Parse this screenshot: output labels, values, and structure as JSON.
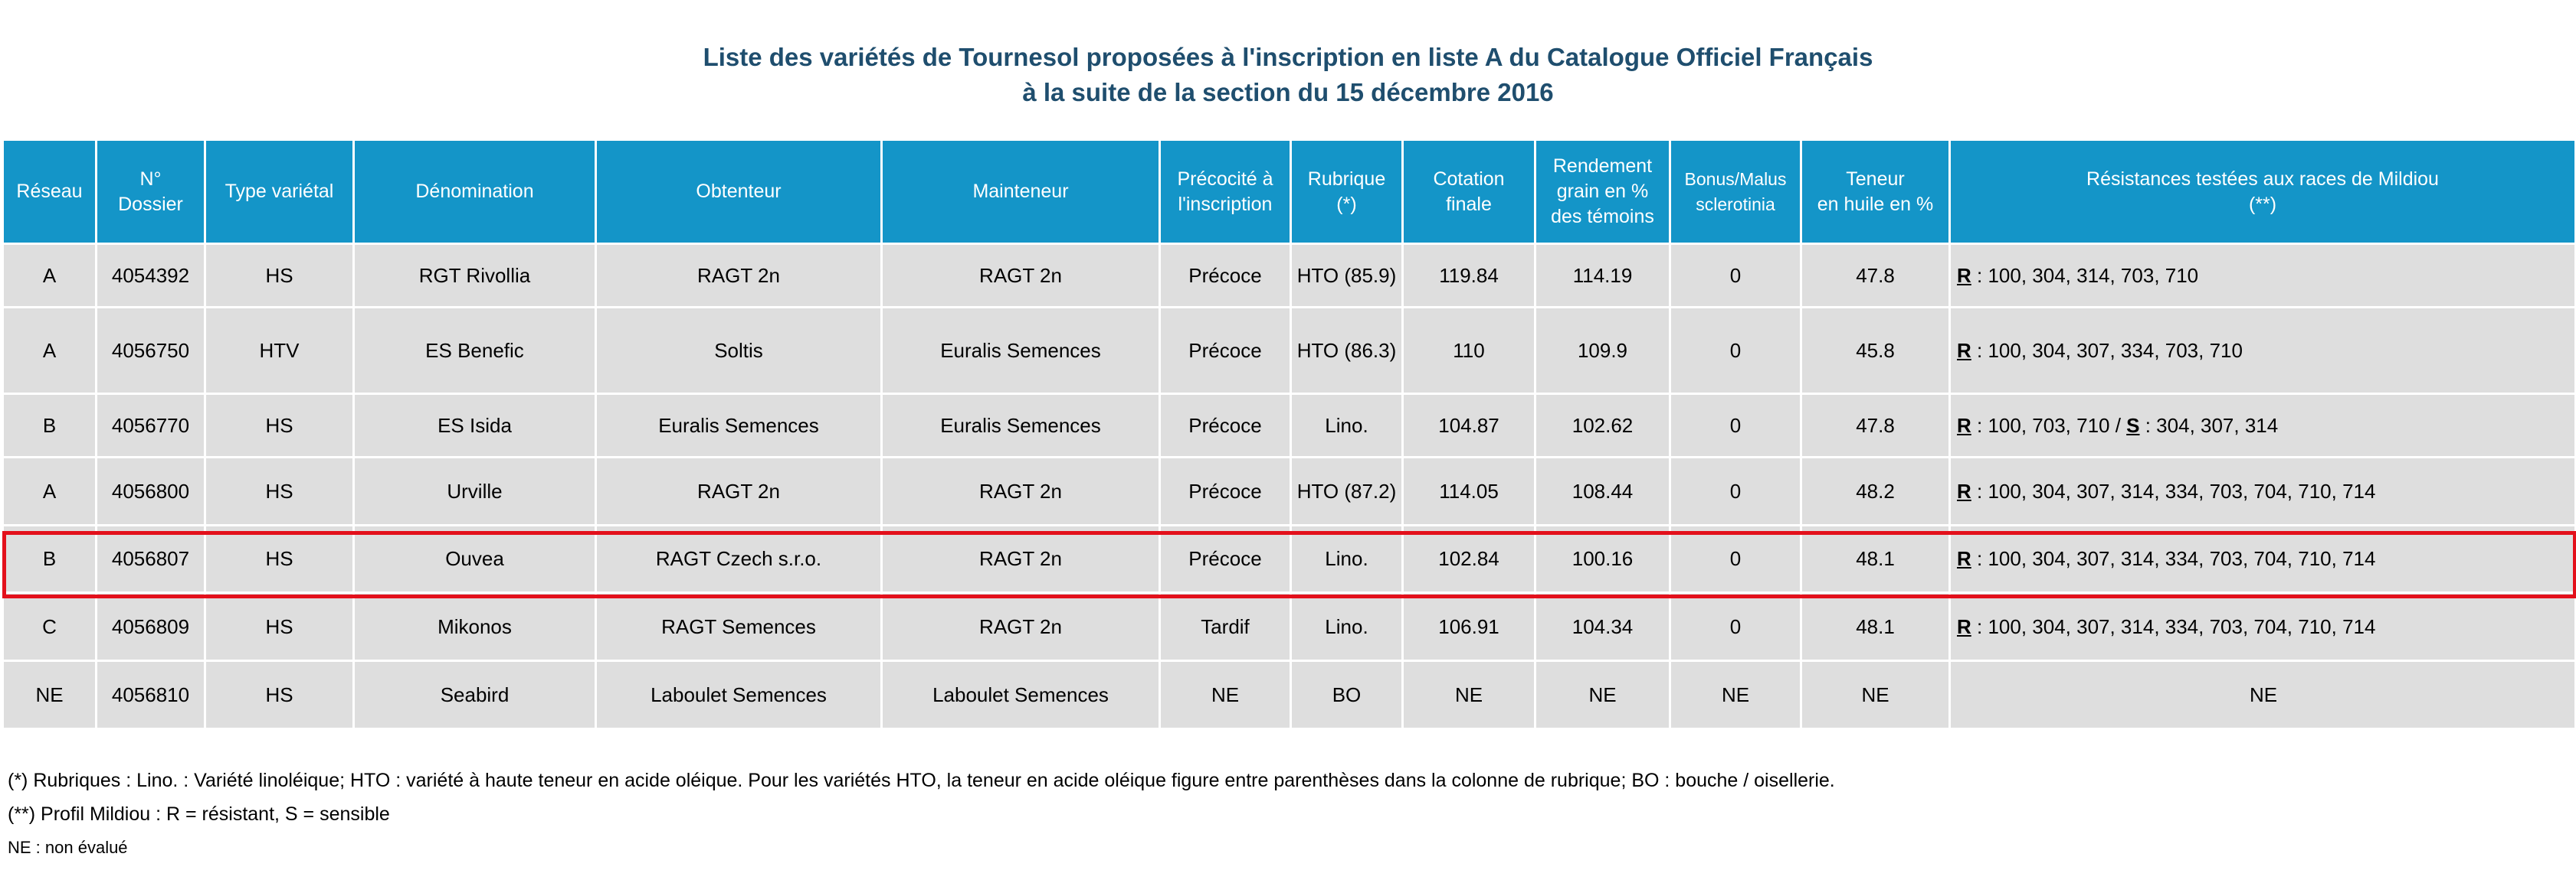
{
  "title": {
    "line1": "Liste des variétés de Tournesol proposées à l'inscription en liste A du Catalogue Officiel Français",
    "line2": "à la suite de la section du 15 décembre 2016"
  },
  "headers": {
    "reseau": "Réseau",
    "dossier_1": "N°",
    "dossier_2": "Dossier",
    "type": "Type variétal",
    "denomination": "Dénomination",
    "obtenteur": "Obtenteur",
    "mainteneur": "Mainteneur",
    "precocite_1": "Précocité à",
    "precocite_2": "l'inscription",
    "rubrique_1": "Rubrique",
    "rubrique_2": "(*)",
    "cotation_1": "Cotation",
    "cotation_2": "finale",
    "rendement_1": "Rendement",
    "rendement_2": "grain en %",
    "rendement_3": "des témoins",
    "bonus_1": "Bonus/Malus",
    "bonus_2": "sclerotinia",
    "teneur_1": "Teneur",
    "teneur_2": "en huile en %",
    "resist_1": "Résistances testées aux races de Mildiou",
    "resist_2": "(**)"
  },
  "rows": [
    {
      "reseau": "A",
      "dossier": "4054392",
      "type": "HS",
      "denomination": "RGT Rivollia",
      "obtenteur": "RAGT 2n",
      "mainteneur": "RAGT 2n",
      "precocite": "Précoce",
      "rubrique": "HTO (85.9)",
      "cotation": "119.84",
      "rendement": "114.19",
      "bonus": "0",
      "teneur": "47.8",
      "r_label": "R",
      "r_text": " : 100, 304, 314, 703, 710",
      "s_sep": "",
      "s_label": "",
      "s_text": ""
    },
    {
      "reseau": "A",
      "dossier": "4056750",
      "type": "HTV",
      "denomination": "ES Benefic",
      "obtenteur": "Soltis",
      "mainteneur": "Euralis Semences",
      "precocite": "Précoce",
      "rubrique": "HTO (86.3)",
      "cotation": "110",
      "rendement": "109.9",
      "bonus": "0",
      "teneur": "45.8",
      "r_label": "R",
      "r_text": " : 100, 304, 307, 334, 703, 710",
      "s_sep": "",
      "s_label": "",
      "s_text": ""
    },
    {
      "reseau": "B",
      "dossier": "4056770",
      "type": "HS",
      "denomination": "ES Isida",
      "obtenteur": "Euralis Semences",
      "mainteneur": "Euralis Semences",
      "precocite": "Précoce",
      "rubrique": "Lino.",
      "cotation": "104.87",
      "rendement": "102.62",
      "bonus": "0",
      "teneur": "47.8",
      "r_label": "R",
      "r_text": " : 100, 703, 710 / ",
      "s_sep": "",
      "s_label": "S",
      "s_text": " : 304, 307, 314"
    },
    {
      "reseau": "A",
      "dossier": "4056800",
      "type": "HS",
      "denomination": "Urville",
      "obtenteur": "RAGT 2n",
      "mainteneur": "RAGT 2n",
      "precocite": "Précoce",
      "rubrique": "HTO (87.2)",
      "cotation": "114.05",
      "rendement": "108.44",
      "bonus": "0",
      "teneur": "48.2",
      "r_label": "R",
      "r_text": " : 100, 304, 307, 314, 334, 703, 704, 710, 714",
      "s_sep": "",
      "s_label": "",
      "s_text": ""
    },
    {
      "reseau": "B",
      "dossier": "4056807",
      "type": "HS",
      "denomination": "Ouvea",
      "obtenteur": "RAGT Czech s.r.o.",
      "mainteneur": "RAGT 2n",
      "precocite": "Précoce",
      "rubrique": "Lino.",
      "cotation": "102.84",
      "rendement": "100.16",
      "bonus": "0",
      "teneur": "48.1",
      "r_label": "R",
      "r_text": " : 100, 304, 307, 314, 334, 703, 704, 710, 714",
      "s_sep": "",
      "s_label": "",
      "s_text": ""
    },
    {
      "reseau": "C",
      "dossier": "4056809",
      "type": "HS",
      "denomination": "Mikonos",
      "obtenteur": "RAGT Semences",
      "mainteneur": "RAGT 2n",
      "precocite": "Tardif",
      "rubrique": "Lino.",
      "cotation": "106.91",
      "rendement": "104.34",
      "bonus": "0",
      "teneur": "48.1",
      "r_label": "R",
      "r_text": " : 100, 304, 307, 314, 334, 703, 704, 710, 714",
      "s_sep": "",
      "s_label": "",
      "s_text": ""
    },
    {
      "reseau": "NE",
      "dossier": "4056810",
      "type": "HS",
      "denomination": "Seabird",
      "obtenteur": "Laboulet Semences",
      "mainteneur": "Laboulet Semences",
      "precocite": "NE",
      "rubrique": "BO",
      "cotation": "NE",
      "rendement": "NE",
      "bonus": "NE",
      "teneur": "NE",
      "r_label": "",
      "r_text": "NE",
      "s_sep": "",
      "s_label": "",
      "s_text": ""
    }
  ],
  "highlight_color": "#e3101b",
  "header_color": "#1495c8",
  "row_color": "#dedede",
  "title_color": "#1f4e6e",
  "notes": {
    "rubriques": "(*) Rubriques : Lino. : Variété linoléique; HTO : variété à haute teneur en acide oléique. Pour les variétés HTO, la teneur en acide oléique figure entre parenthèses dans la colonne de rubrique; BO : bouche / oisellerie.",
    "profil": "(**) Profil Mildiou : R = résistant, S = sensible",
    "ne": "NE : non évalué"
  }
}
